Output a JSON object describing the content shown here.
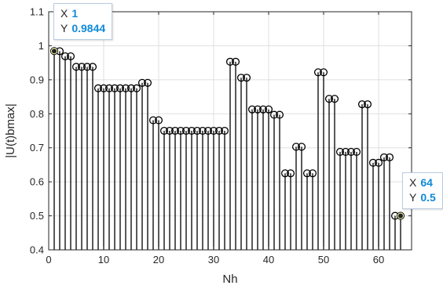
{
  "chart_data": {
    "type": "stem",
    "xlabel": "Nh",
    "ylabel": "|U(t)bmax|",
    "xlim": [
      0,
      66
    ],
    "ylim": [
      0.4,
      1.1
    ],
    "xticks": [
      0,
      10,
      20,
      30,
      40,
      50,
      60
    ],
    "yticks": [
      0.4,
      0.5,
      0.6,
      0.7,
      0.8,
      0.9,
      1,
      1.1
    ],
    "grid": true,
    "x": [
      1,
      2,
      3,
      4,
      5,
      6,
      7,
      8,
      9,
      10,
      11,
      12,
      13,
      14,
      15,
      16,
      17,
      18,
      19,
      20,
      21,
      22,
      23,
      24,
      25,
      26,
      27,
      28,
      29,
      30,
      31,
      32,
      33,
      34,
      35,
      36,
      37,
      38,
      39,
      40,
      41,
      42,
      43,
      44,
      45,
      46,
      47,
      48,
      49,
      50,
      51,
      52,
      53,
      54,
      55,
      56,
      57,
      58,
      59,
      60,
      61,
      62,
      63,
      64
    ],
    "values": [
      0.9844,
      0.984,
      0.969,
      0.969,
      0.938,
      0.938,
      0.938,
      0.938,
      0.875,
      0.875,
      0.875,
      0.875,
      0.875,
      0.875,
      0.875,
      0.875,
      0.891,
      0.891,
      0.781,
      0.781,
      0.75,
      0.75,
      0.75,
      0.75,
      0.75,
      0.75,
      0.75,
      0.75,
      0.75,
      0.75,
      0.75,
      0.75,
      0.953,
      0.953,
      0.906,
      0.906,
      0.813,
      0.813,
      0.813,
      0.813,
      0.797,
      0.797,
      0.625,
      0.625,
      0.703,
      0.703,
      0.625,
      0.625,
      0.922,
      0.922,
      0.844,
      0.844,
      0.688,
      0.688,
      0.688,
      0.688,
      0.828,
      0.828,
      0.656,
      0.656,
      0.672,
      0.672,
      0.5,
      0.5
    ],
    "datatips": [
      {
        "x_label": "X",
        "x_value": "1",
        "y_label": "Y",
        "y_value": "0.9844"
      },
      {
        "x_label": "X",
        "x_value": "64",
        "y_label": "Y",
        "y_value": "0.5"
      }
    ]
  }
}
